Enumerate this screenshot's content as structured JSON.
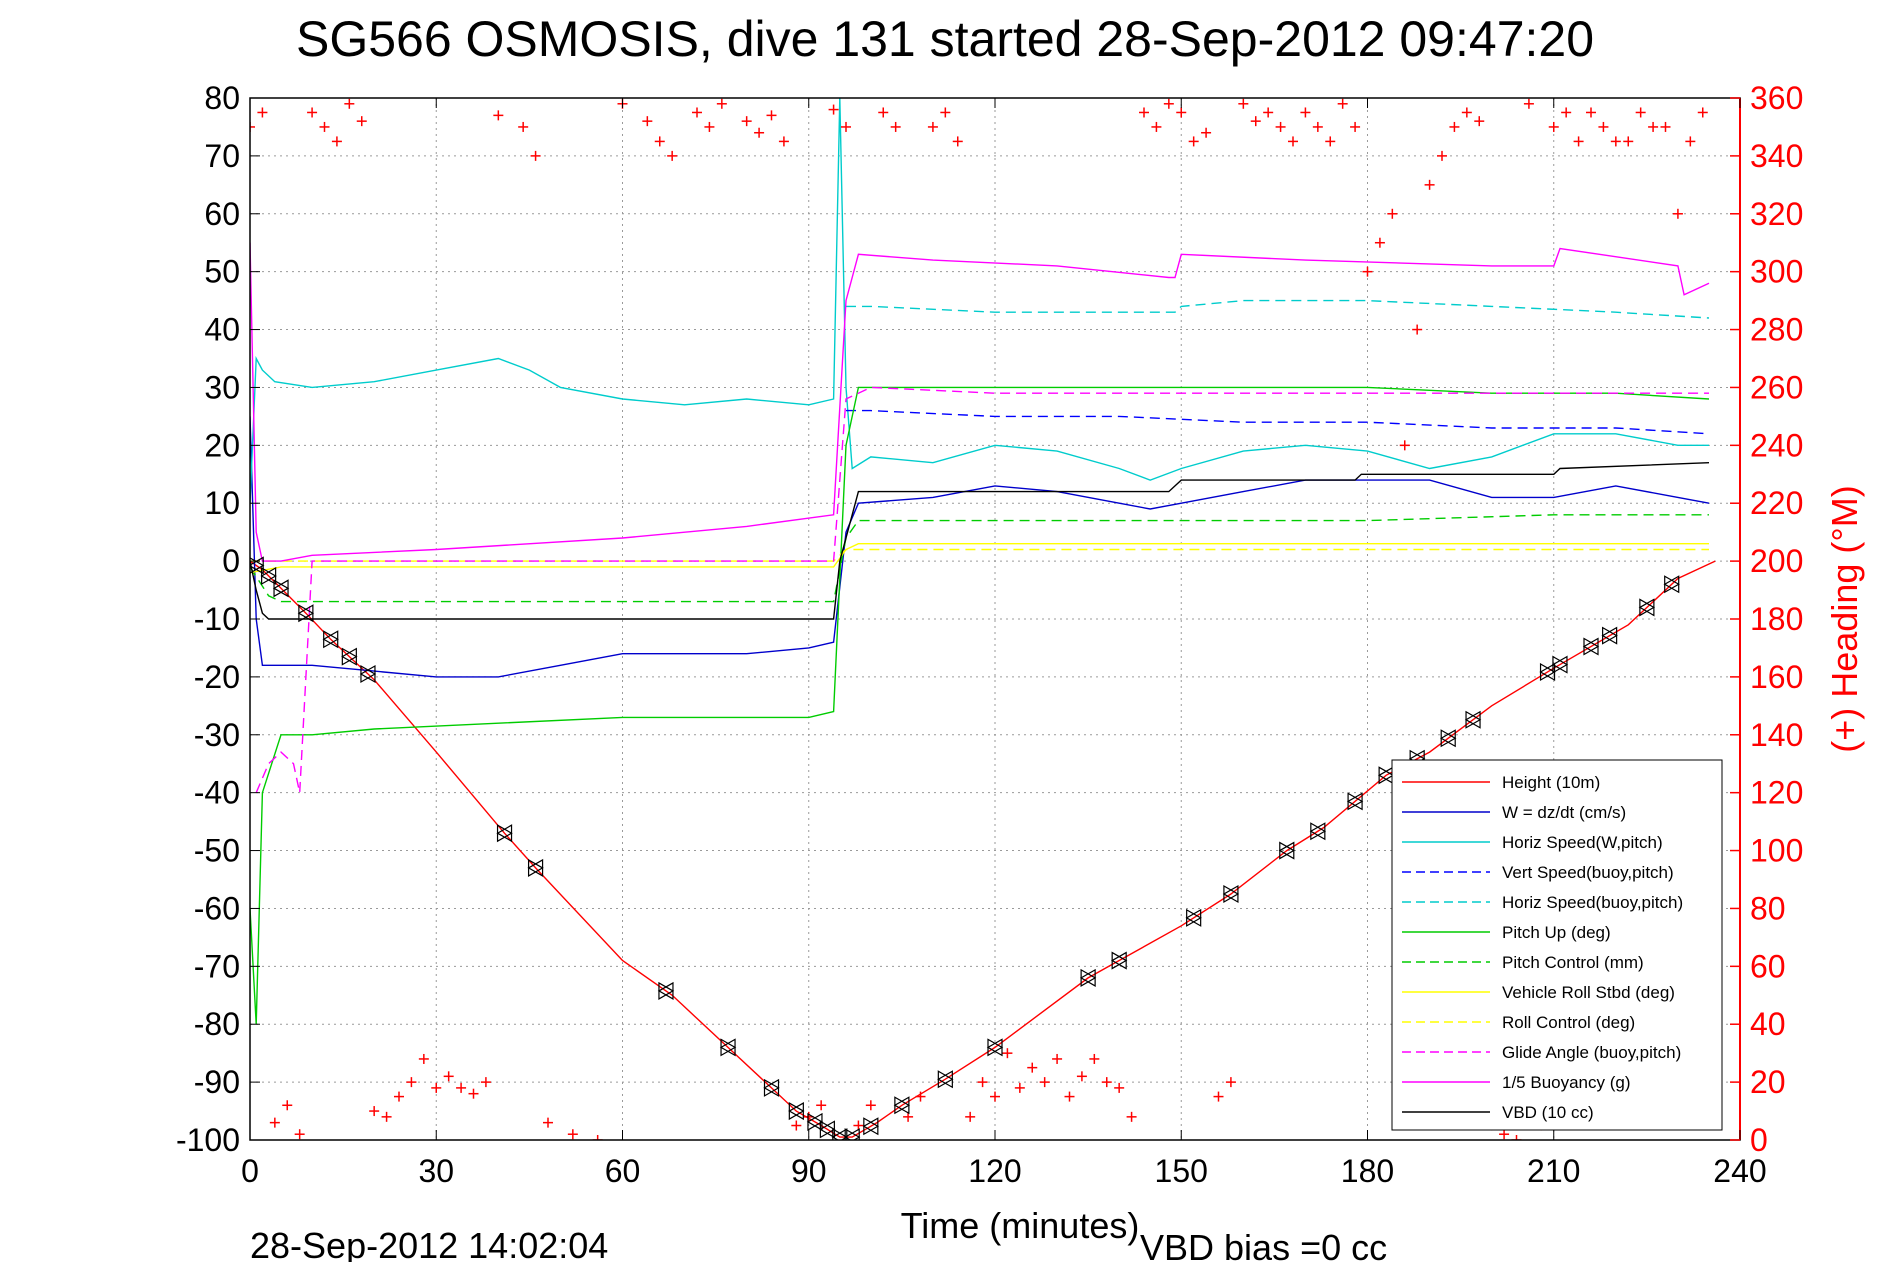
{
  "chart_data": {
    "type": "line",
    "title": "SG566 OSMOSIS, dive 131 started 28-Sep-2012 09:47:20",
    "xlabel": "Time (minutes)",
    "ylabel": "",
    "ylabel_right": "(+) Heading (°M)",
    "xlim": [
      0,
      240
    ],
    "ylim": [
      -100,
      80
    ],
    "ylim_right": [
      0,
      360
    ],
    "x_ticks": [
      "0",
      "30",
      "60",
      "90",
      "120",
      "150",
      "180",
      "210",
      "240"
    ],
    "y_ticks": [
      "80",
      "70",
      "60",
      "50",
      "40",
      "30",
      "20",
      "10",
      "0",
      "-10",
      "-20",
      "-30",
      "-40",
      "-50",
      "-60",
      "-70",
      "-80",
      "-90",
      "-100"
    ],
    "y_right_ticks": [
      "360",
      "340",
      "320",
      "300",
      "280",
      "260",
      "240",
      "220",
      "200",
      "180",
      "160",
      "140",
      "120",
      "100",
      "80",
      "60",
      "40",
      "20",
      "0"
    ],
    "grid": true,
    "legend_position": "bottom-right",
    "footer_left": "28-Sep-2012 14:02:04",
    "footer_right": "VBD bias =0 cc",
    "series": [
      {
        "name": "Height (10m)",
        "color": "#ff0000",
        "style": "solid",
        "x": [
          0,
          2,
          5,
          9,
          13,
          17,
          20,
          30,
          41,
          46,
          60,
          68,
          77,
          84,
          88,
          92,
          95,
          97,
          101,
          105,
          112,
          120,
          135,
          140,
          150,
          158,
          167,
          173,
          183,
          190,
          200,
          210,
          222,
          230,
          236
        ],
        "y": [
          0,
          -1.5,
          -4.7,
          -9,
          -13.5,
          -17.5,
          -20.5,
          -33,
          -47,
          -53,
          -69,
          -75,
          -84,
          -91,
          -95,
          -97.5,
          -99.5,
          -99.5,
          -97,
          -94,
          -89.5,
          -84,
          -72,
          -69,
          -63,
          -57.5,
          -50,
          -46,
          -37,
          -33,
          -25,
          -18.5,
          -11,
          -3,
          0
        ]
      },
      {
        "name": "W = dz/dt (cm/s)",
        "color": "#0000cc",
        "style": "solid",
        "x": [
          0,
          1,
          2,
          5,
          10,
          20,
          30,
          40,
          50,
          60,
          70,
          80,
          90,
          94,
          96,
          98,
          110,
          120,
          130,
          140,
          145,
          150,
          160,
          170,
          180,
          190,
          200,
          210,
          220,
          230,
          235
        ],
        "y": [
          25,
          -10,
          -18,
          -18,
          -18,
          -19,
          -20,
          -20,
          -18,
          -16,
          -16,
          -16,
          -15,
          -14,
          5,
          10,
          11,
          13,
          12,
          10,
          9,
          10,
          12,
          14,
          14,
          14,
          11,
          11,
          13,
          11,
          10
        ]
      },
      {
        "name": "Horiz Speed(W,pitch)",
        "color": "#00cccc",
        "style": "solid",
        "x": [
          0,
          1,
          2,
          4,
          10,
          20,
          30,
          40,
          45,
          50,
          60,
          70,
          80,
          90,
          94,
          95,
          96,
          97,
          100,
          110,
          120,
          130,
          140,
          145,
          150,
          160,
          170,
          180,
          190,
          200,
          210,
          220,
          230,
          235
        ],
        "y": [
          10,
          35,
          33,
          31,
          30,
          31,
          33,
          35,
          33,
          30,
          28,
          27,
          28,
          27,
          28,
          80,
          30,
          16,
          18,
          17,
          20,
          19,
          16,
          14,
          16,
          19,
          20,
          19,
          16,
          18,
          22,
          22,
          20,
          20
        ]
      },
      {
        "name": "Vert Speed(buoy,pitch)",
        "color": "#0000ff",
        "style": "dashed",
        "x": [
          96,
          100,
          120,
          140,
          160,
          180,
          200,
          220,
          235
        ],
        "y": [
          26,
          26,
          25,
          25,
          24,
          24,
          23,
          23,
          22
        ]
      },
      {
        "name": "Horiz Speed(buoy,pitch)",
        "color": "#00cccc",
        "style": "dashed",
        "x": [
          96,
          100,
          120,
          140,
          149,
          150,
          160,
          180,
          200,
          220,
          235
        ],
        "y": [
          44,
          44,
          43,
          43,
          43,
          44,
          45,
          45,
          44,
          43,
          42
        ]
      },
      {
        "name": "Pitch Up (deg)",
        "color": "#00cc00",
        "style": "solid",
        "x": [
          0,
          1,
          2,
          5,
          10,
          20,
          40,
          60,
          80,
          90,
          94,
          96,
          98,
          120,
          150,
          180,
          200,
          220,
          235
        ],
        "y": [
          -60,
          -80,
          -40,
          -30,
          -30,
          -29,
          -28,
          -27,
          -27,
          -27,
          -26,
          20,
          30,
          30,
          30,
          30,
          29,
          29,
          28
        ]
      },
      {
        "name": "Pitch Control (mm)",
        "color": "#00cc00",
        "style": "dashed",
        "x": [
          0,
          3,
          5,
          30,
          60,
          94,
          96,
          98,
          120,
          150,
          180,
          210,
          235
        ],
        "y": [
          -1,
          -6,
          -7,
          -7,
          -7,
          -7,
          4,
          7,
          7,
          7,
          7,
          8,
          8
        ]
      },
      {
        "name": "Vehicle Roll Stbd (deg)",
        "color": "#ffff00",
        "style": "solid",
        "x": [
          0,
          5,
          10,
          30,
          60,
          94,
          96,
          98,
          120,
          150,
          180,
          210,
          235
        ],
        "y": [
          -2,
          -1,
          -1,
          -1,
          -1,
          -1,
          2,
          3,
          3,
          3,
          3,
          3,
          3
        ]
      },
      {
        "name": "Roll Control (deg)",
        "color": "#ffff00",
        "style": "dashed",
        "x": [
          0,
          5,
          30,
          60,
          94,
          96,
          120,
          150,
          180,
          210,
          235
        ],
        "y": [
          0,
          0,
          0,
          0,
          0,
          2,
          2,
          2,
          2,
          2,
          2
        ]
      },
      {
        "name": "Glide Angle (buoy,pitch)",
        "color": "#ff00ff",
        "style": "dashed",
        "x": [
          1,
          3,
          5,
          7,
          8,
          10,
          30,
          60,
          94,
          96,
          100,
          120,
          150,
          180,
          210,
          235
        ],
        "y": [
          -40,
          -35,
          -33,
          -35,
          -40,
          0,
          0,
          0,
          0,
          28,
          30,
          29,
          29,
          29,
          29,
          29
        ]
      },
      {
        "name": "1/5 Buoyancy (g)",
        "color": "#ff00ff",
        "style": "solid",
        "x": [
          0,
          1,
          2,
          5,
          10,
          30,
          60,
          80,
          94,
          96,
          98,
          110,
          130,
          148,
          149,
          150,
          170,
          200,
          210,
          211,
          230,
          231,
          235
        ],
        "y": [
          55,
          5,
          0,
          0,
          1,
          2,
          4,
          6,
          8,
          45,
          53,
          52,
          51,
          49,
          49,
          53,
          52,
          51,
          51,
          54,
          51,
          46,
          48
        ]
      },
      {
        "name": "VBD (10 cc)",
        "color": "#000000",
        "style": "solid",
        "x": [
          0,
          1,
          2,
          3,
          94,
          95,
          98,
          99,
          148,
          149,
          150,
          178,
          179,
          210,
          211,
          235
        ],
        "y": [
          0,
          -5,
          -9,
          -10,
          -10,
          0,
          12,
          12,
          12,
          13,
          14,
          14,
          15,
          15,
          16,
          17
        ]
      }
    ],
    "heading_points": {
      "name": "(+) Heading (°M)",
      "color": "#ff0000",
      "axis": "right",
      "x": [
        0,
        2,
        4,
        6,
        8,
        10,
        12,
        14,
        16,
        18,
        20,
        22,
        24,
        26,
        28,
        30,
        32,
        34,
        36,
        38,
        40,
        44,
        46,
        48,
        52,
        56,
        60,
        64,
        66,
        68,
        72,
        74,
        76,
        80,
        82,
        84,
        86,
        88,
        90,
        92,
        94,
        96,
        98,
        100,
        102,
        104,
        106,
        108,
        110,
        112,
        114,
        116,
        118,
        120,
        122,
        124,
        126,
        128,
        130,
        132,
        134,
        136,
        138,
        140,
        142,
        144,
        146,
        148,
        150,
        152,
        154,
        156,
        158,
        160,
        162,
        164,
        166,
        168,
        170,
        172,
        174,
        176,
        178,
        180,
        182,
        184,
        186,
        188,
        190,
        192,
        194,
        196,
        198,
        200,
        202,
        204,
        206,
        208,
        210,
        212,
        214,
        216,
        218,
        220,
        222,
        224,
        226,
        228,
        230,
        232,
        234
      ],
      "y": [
        350,
        355,
        6,
        12,
        2,
        355,
        350,
        345,
        358,
        352,
        10,
        8,
        15,
        20,
        28,
        18,
        22,
        18,
        16,
        20,
        354,
        350,
        340,
        6,
        2,
        0,
        358,
        352,
        345,
        340,
        355,
        350,
        358,
        352,
        348,
        354,
        345,
        5,
        8,
        12,
        356,
        350,
        5,
        12,
        355,
        350,
        8,
        15,
        350,
        355,
        345,
        8,
        20,
        15,
        30,
        18,
        25,
        20,
        28,
        15,
        22,
        28,
        20,
        18,
        8,
        355,
        350,
        358,
        355,
        345,
        348,
        15,
        20,
        358,
        352,
        355,
        350,
        345,
        355,
        350,
        345,
        358,
        350,
        300,
        310,
        320,
        240,
        280,
        330,
        340,
        350,
        355,
        352,
        5,
        2,
        0,
        358,
        5,
        350,
        355,
        345,
        355,
        350,
        345,
        345,
        355,
        350,
        350,
        320,
        345,
        355
      ]
    },
    "vbd_markers_x": [
      1,
      3,
      5,
      9,
      13,
      16,
      19,
      41,
      46,
      67,
      77,
      84,
      88,
      91,
      93,
      95,
      97,
      100,
      105,
      112,
      120,
      135,
      140,
      152,
      158,
      167,
      172,
      178,
      183,
      188,
      193,
      197,
      209,
      211,
      216,
      219,
      225,
      229
    ]
  },
  "legend": {
    "entries": [
      {
        "label": "Height (10m)",
        "color": "#ff0000",
        "style": "solid"
      },
      {
        "label": "W = dz/dt (cm/s)",
        "color": "#0000cc",
        "style": "solid"
      },
      {
        "label": "Horiz Speed(W,pitch)",
        "color": "#00cccc",
        "style": "solid"
      },
      {
        "label": "Vert Speed(buoy,pitch)",
        "color": "#0000ff",
        "style": "dashed"
      },
      {
        "label": "Horiz Speed(buoy,pitch)",
        "color": "#00cccc",
        "style": "dashed"
      },
      {
        "label": "Pitch Up (deg)",
        "color": "#00cc00",
        "style": "solid"
      },
      {
        "label": "Pitch Control (mm)",
        "color": "#00cc00",
        "style": "dashed"
      },
      {
        "label": "Vehicle Roll Stbd (deg)",
        "color": "#ffff00",
        "style": "solid"
      },
      {
        "label": "Roll Control (deg)",
        "color": "#ffff00",
        "style": "dashed"
      },
      {
        "label": "Glide Angle (buoy,pitch)",
        "color": "#ff00ff",
        "style": "dashed"
      },
      {
        "label": "1/5 Buoyancy (g)",
        "color": "#ff00ff",
        "style": "solid"
      },
      {
        "label": "VBD (10 cc)",
        "color": "#000000",
        "style": "solid"
      }
    ]
  }
}
